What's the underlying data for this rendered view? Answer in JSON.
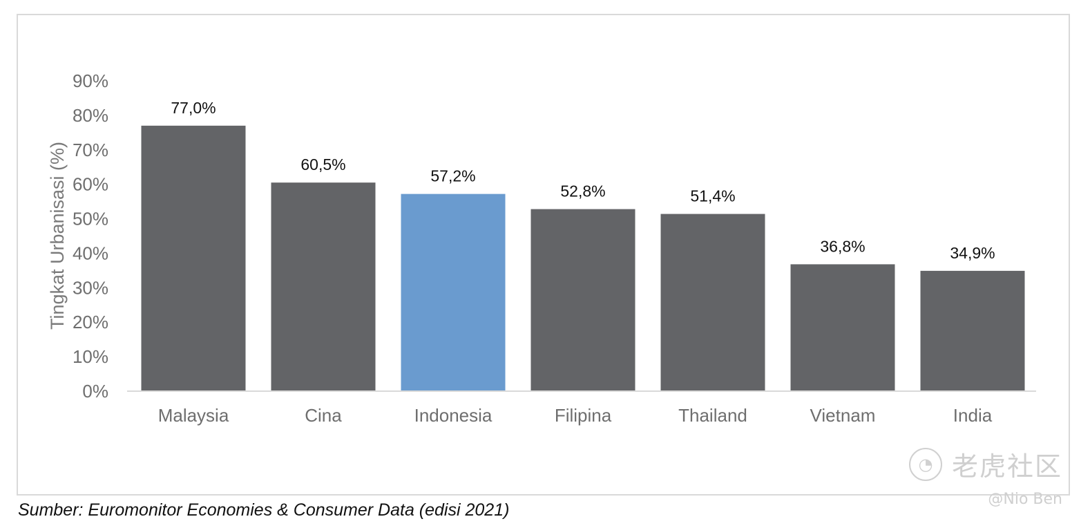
{
  "chart_data": {
    "type": "bar",
    "categories": [
      "Malaysia",
      "Cina",
      "Indonesia",
      "Filipina",
      "Thailand",
      "Vietnam",
      "India"
    ],
    "values": [
      77.0,
      60.5,
      57.2,
      52.8,
      51.4,
      36.8,
      34.9
    ],
    "data_labels": [
      "77,0%",
      "60,5%",
      "57,2%",
      "52,8%",
      "51,4%",
      "36,8%",
      "34,9%"
    ],
    "highlight_category": "Indonesia",
    "colors": {
      "bar": "#636467",
      "highlight": "#6a9bcf",
      "baseline": "#d9d9d9"
    },
    "ylabel": "Tingkat Urbanisasi (%)",
    "xlabel": "",
    "ylim": [
      0,
      90
    ],
    "y_ticks": [
      0,
      10,
      20,
      30,
      40,
      50,
      60,
      70,
      80,
      90
    ],
    "y_tick_labels": [
      "0%",
      "10%",
      "20%",
      "30%",
      "40%",
      "50%",
      "60%",
      "70%",
      "80%",
      "90%"
    ],
    "grid": false,
    "legend": "none"
  },
  "source_note": "Sumber: Euromonitor Economies & Consumer Data (edisi 2021)",
  "watermark": {
    "text": "老虎社区",
    "handle": "@Nio Ben",
    "icon": "tiger-logo-icon"
  }
}
